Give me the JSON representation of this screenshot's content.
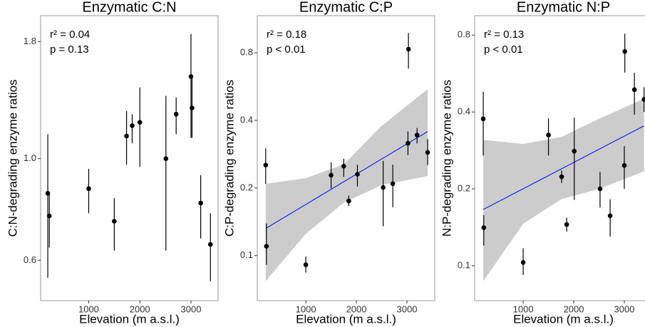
{
  "chart_data": [
    {
      "type": "scatter",
      "title": "Enzymatic C:N",
      "annotations": [
        "r² = 0.04",
        "p = 0.13"
      ],
      "x_label": "Elevation (m a.s.l.)",
      "y_label": "C:N-degrading enzyme ratios",
      "y_log": true,
      "color": "#000000",
      "x": [
        200,
        230,
        1000,
        1500,
        1740,
        1850,
        2000,
        2510,
        2710,
        3000,
        3020,
        3190,
        3380
      ],
      "values": [
        0.84,
        0.75,
        0.86,
        0.73,
        1.12,
        1.18,
        1.2,
        1.0,
        1.25,
        1.51,
        1.29,
        0.8,
        0.65
      ],
      "error_low": [
        0.55,
        0.64,
        0.76,
        0.63,
        0.97,
        1.08,
        0.96,
        0.63,
        1.13,
        1.11,
        1.11,
        0.67,
        0.54
      ],
      "error_high": [
        1.13,
        0.84,
        0.95,
        0.82,
        1.27,
        1.25,
        1.43,
        1.37,
        1.36,
        1.87,
        1.51,
        0.92,
        0.76
      ],
      "xlim": [
        60,
        3530
      ],
      "ylim": [
        0.49,
        2.05
      ],
      "xticks": [
        1000,
        2000,
        3000
      ],
      "yticks": [
        0.6,
        {
          "value": 1,
          "label": "1.0"
        },
        1.8
      ]
    },
    {
      "type": "scatter",
      "title": "Enzymatic C:P",
      "annotations": [
        "r² = 0.18",
        "p < 0.01"
      ],
      "x_label": "Elevation (m a.s.l.)",
      "y_label": "C:P-degrading enzyme ratios",
      "y_log": true,
      "color": "#000000",
      "fit_color": "#0000ff",
      "band_color": "#cccccc",
      "x": [
        206,
        220,
        1000,
        1500,
        1750,
        1850,
        2020,
        2530,
        2720,
        3030,
        3020,
        3200,
        3410
      ],
      "values": [
        0.253,
        0.11,
        0.091,
        0.228,
        0.25,
        0.175,
        0.23,
        0.201,
        0.209,
        0.83,
        0.316,
        0.344,
        0.288
      ],
      "error_low": [
        0.209,
        0.091,
        0.084,
        0.199,
        0.224,
        0.166,
        0.203,
        0.135,
        0.164,
        0.68,
        0.28,
        0.316,
        0.253
      ],
      "error_high": [
        0.3,
        0.139,
        0.099,
        0.26,
        0.27,
        0.185,
        0.254,
        0.264,
        0.254,
        0.98,
        0.357,
        0.37,
        0.33
      ],
      "fit_x": [
        206,
        3410
      ],
      "fit_y": [
        0.132,
        0.357
      ],
      "band_x": [
        206,
        1000,
        1750,
        2500,
        3410
      ],
      "band_low": [
        0.077,
        0.125,
        0.172,
        0.206,
        0.226
      ],
      "band_high": [
        0.209,
        0.221,
        0.255,
        0.378,
        0.551
      ],
      "xlim": [
        40,
        3550
      ],
      "ylim": [
        0.063,
        1.17
      ],
      "xticks": [
        1000,
        2000,
        3000
      ],
      "yticks": [
        0.1,
        0.2,
        0.4,
        0.8
      ]
    },
    {
      "type": "scatter",
      "title": "Enzymatic N:P",
      "annotations": [
        "r² = 0.13",
        "p < 0.01"
      ],
      "x_label": "Elevation (m a.s.l.)",
      "y_label": "N:P-degrading enzyme ratios",
      "y_log": true,
      "color": "#000000",
      "fit_color": "#0000ff",
      "band_color": "#cccccc",
      "x": [
        210,
        220,
        1000,
        1500,
        1760,
        1860,
        2010,
        2520,
        2720,
        3010,
        3000,
        3200,
        3390
      ],
      "values": [
        0.376,
        0.141,
        0.103,
        0.325,
        0.223,
        0.145,
        0.281,
        0.2,
        0.157,
        0.69,
        0.247,
        0.489,
        0.448
      ],
      "error_low": [
        0.27,
        0.12,
        0.092,
        0.27,
        0.211,
        0.136,
        0.181,
        0.169,
        0.13,
        0.57,
        0.2,
        0.39,
        0.4
      ],
      "error_high": [
        0.48,
        0.158,
        0.117,
        0.378,
        0.236,
        0.154,
        0.38,
        0.233,
        0.182,
        0.81,
        0.294,
        0.57,
        0.5
      ],
      "fit_x": [
        210,
        3390
      ],
      "fit_y": [
        0.166,
        0.353
      ],
      "band_x": [
        210,
        1000,
        1750,
        2500,
        3390
      ],
      "band_low": [
        0.087,
        0.146,
        0.182,
        0.2,
        0.234
      ],
      "band_high": [
        0.311,
        0.3,
        0.319,
        0.376,
        0.451
      ],
      "xlim": [
        40,
        3550
      ],
      "ylim": [
        0.073,
        0.953
      ],
      "xticks": [
        1000,
        2000,
        3000
      ],
      "yticks": [
        0.1,
        0.2,
        0.4,
        0.8
      ]
    }
  ]
}
